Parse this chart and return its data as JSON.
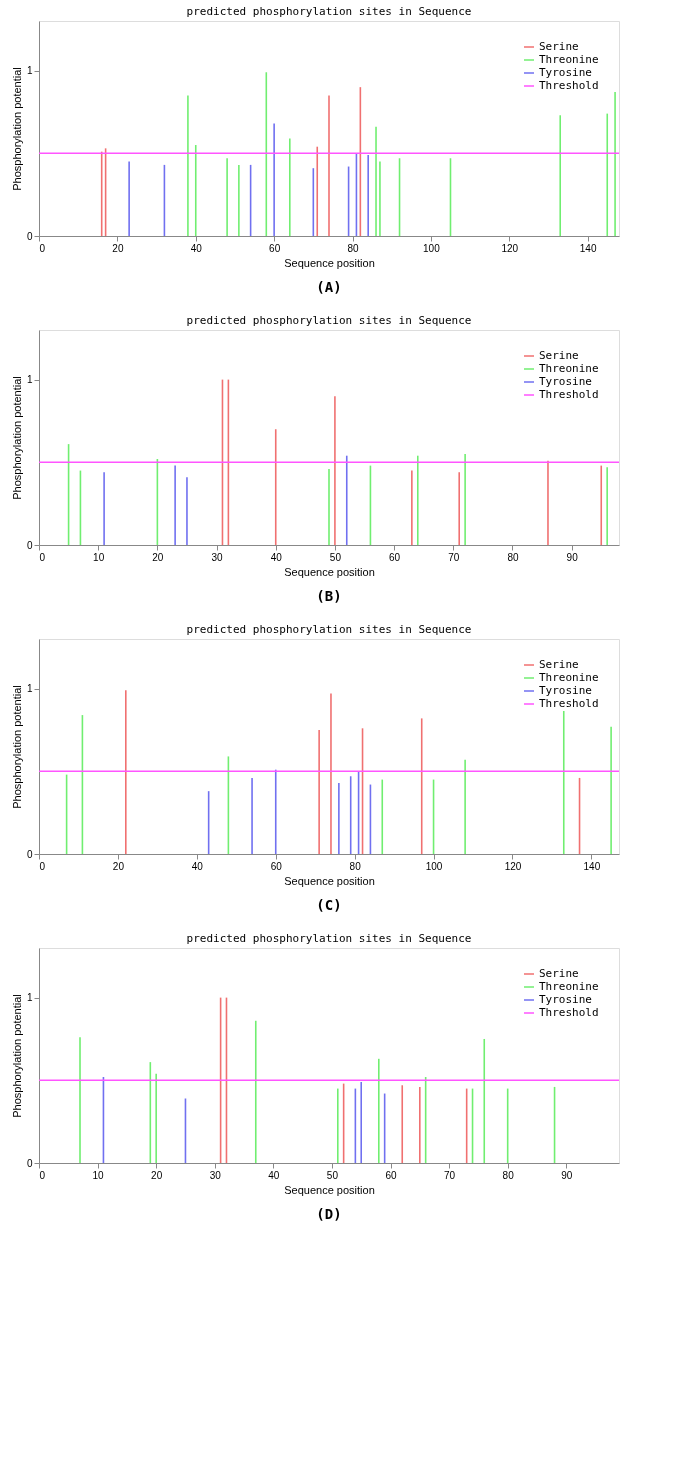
{
  "chart_data": [
    {
      "type": "bar",
      "title": "predicted phosphorylation sites in Sequence",
      "xlabel": "Sequence position",
      "ylabel": "Phosphorylation potential",
      "xlim": [
        0,
        148
      ],
      "ylim": [
        0,
        1.3
      ],
      "xticks": [
        0,
        20,
        40,
        60,
        80,
        100,
        120,
        140
      ],
      "yticks": [
        0,
        1
      ],
      "grid": false,
      "legend": "top right",
      "annotations": [
        "(A)"
      ],
      "ref_lines": [
        {
          "axis": "y",
          "value": 0.5,
          "label": "Threshold",
          "color": "#ff55ff"
        }
      ],
      "series": [
        {
          "name": "Serine",
          "color": "#f07070",
          "x": [
            16,
            17,
            71,
            74,
            82
          ],
          "values": [
            0.51,
            0.53,
            0.54,
            0.85,
            0.9
          ]
        },
        {
          "name": "Threonine",
          "color": "#70ee70",
          "x": [
            38,
            40,
            48,
            51,
            58,
            64,
            86,
            87,
            92,
            105,
            133,
            145,
            147
          ],
          "values": [
            0.85,
            0.55,
            0.47,
            0.43,
            0.99,
            0.59,
            0.66,
            0.45,
            0.47,
            0.47,
            0.73,
            0.74,
            0.87
          ]
        },
        {
          "name": "Tyrosine",
          "color": "#7070f0",
          "x": [
            23,
            32,
            54,
            60,
            70,
            79,
            81,
            84
          ],
          "values": [
            0.45,
            0.43,
            0.43,
            0.68,
            0.41,
            0.42,
            0.5,
            0.49
          ]
        }
      ]
    },
    {
      "type": "bar",
      "title": "predicted phosphorylation sites in Sequence",
      "xlabel": "Sequence position",
      "ylabel": "Phosphorylation potential",
      "xlim": [
        0,
        98
      ],
      "ylim": [
        0,
        1.3
      ],
      "xticks": [
        0,
        10,
        20,
        30,
        40,
        50,
        60,
        70,
        80,
        90
      ],
      "yticks": [
        0,
        1
      ],
      "grid": false,
      "legend": "top right",
      "annotations": [
        "(B)"
      ],
      "ref_lines": [
        {
          "axis": "y",
          "value": 0.5,
          "label": "Threshold",
          "color": "#ff55ff"
        }
      ],
      "series": [
        {
          "name": "Serine",
          "color": "#f07070",
          "x": [
            31,
            32,
            40,
            50,
            63,
            71,
            86,
            95
          ],
          "values": [
            1.0,
            1.0,
            0.7,
            0.9,
            0.45,
            0.44,
            0.51,
            0.48
          ]
        },
        {
          "name": "Threonine",
          "color": "#70ee70",
          "x": [
            5,
            7,
            20,
            49,
            56,
            64,
            72,
            96
          ],
          "values": [
            0.61,
            0.45,
            0.52,
            0.46,
            0.48,
            0.54,
            0.55,
            0.47
          ]
        },
        {
          "name": "Tyrosine",
          "color": "#7070f0",
          "x": [
            11,
            23,
            25,
            52
          ],
          "values": [
            0.44,
            0.48,
            0.41,
            0.54
          ]
        }
      ]
    },
    {
      "type": "bar",
      "title": "predicted phosphorylation sites in Sequence",
      "xlabel": "Sequence position",
      "ylabel": "Phosphorylation potential",
      "xlim": [
        0,
        147
      ],
      "ylim": [
        0,
        1.3
      ],
      "xticks": [
        0,
        20,
        40,
        60,
        80,
        100,
        120,
        140
      ],
      "yticks": [
        0,
        1
      ],
      "grid": false,
      "legend": "top right",
      "annotations": [
        "(C)"
      ],
      "ref_lines": [
        {
          "axis": "y",
          "value": 0.5,
          "label": "Threshold",
          "color": "#ff55ff"
        }
      ],
      "series": [
        {
          "name": "Serine",
          "color": "#f07070",
          "x": [
            22,
            71,
            74,
            82,
            97,
            137
          ],
          "values": [
            0.99,
            0.75,
            0.97,
            0.76,
            0.82,
            0.46
          ]
        },
        {
          "name": "Threonine",
          "color": "#70ee70",
          "x": [
            7,
            11,
            48,
            87,
            100,
            108,
            133,
            145
          ],
          "values": [
            0.48,
            0.84,
            0.59,
            0.45,
            0.45,
            0.57,
            0.89,
            0.77
          ]
        },
        {
          "name": "Tyrosine",
          "color": "#7070f0",
          "x": [
            43,
            54,
            60,
            76,
            79,
            81,
            84
          ],
          "values": [
            0.38,
            0.46,
            0.51,
            0.43,
            0.47,
            0.5,
            0.42
          ]
        }
      ]
    },
    {
      "type": "bar",
      "title": "predicted phosphorylation sites in Sequence",
      "xlabel": "Sequence position",
      "ylabel": "Phosphorylation potential",
      "xlim": [
        0,
        99
      ],
      "ylim": [
        0,
        1.3
      ],
      "xticks": [
        0,
        10,
        20,
        30,
        40,
        50,
        60,
        70,
        80,
        90
      ],
      "yticks": [
        0,
        1
      ],
      "grid": false,
      "legend": "top right",
      "annotations": [
        "(D)"
      ],
      "ref_lines": [
        {
          "axis": "y",
          "value": 0.5,
          "label": "Threshold",
          "color": "#ff55ff"
        }
      ],
      "series": [
        {
          "name": "Serine",
          "color": "#f07070",
          "x": [
            31,
            32,
            52,
            62,
            65,
            73
          ],
          "values": [
            1.0,
            1.0,
            0.48,
            0.47,
            0.46,
            0.45
          ]
        },
        {
          "name": "Threonine",
          "color": "#70ee70",
          "x": [
            7,
            19,
            20,
            37,
            51,
            58,
            66,
            74,
            76,
            80,
            88
          ],
          "values": [
            0.76,
            0.61,
            0.54,
            0.86,
            0.45,
            0.63,
            0.52,
            0.45,
            0.75,
            0.45,
            0.46
          ]
        },
        {
          "name": "Tyrosine",
          "color": "#7070f0",
          "x": [
            11,
            25,
            54,
            55,
            59
          ],
          "values": [
            0.52,
            0.39,
            0.45,
            0.49,
            0.42
          ]
        }
      ]
    }
  ]
}
